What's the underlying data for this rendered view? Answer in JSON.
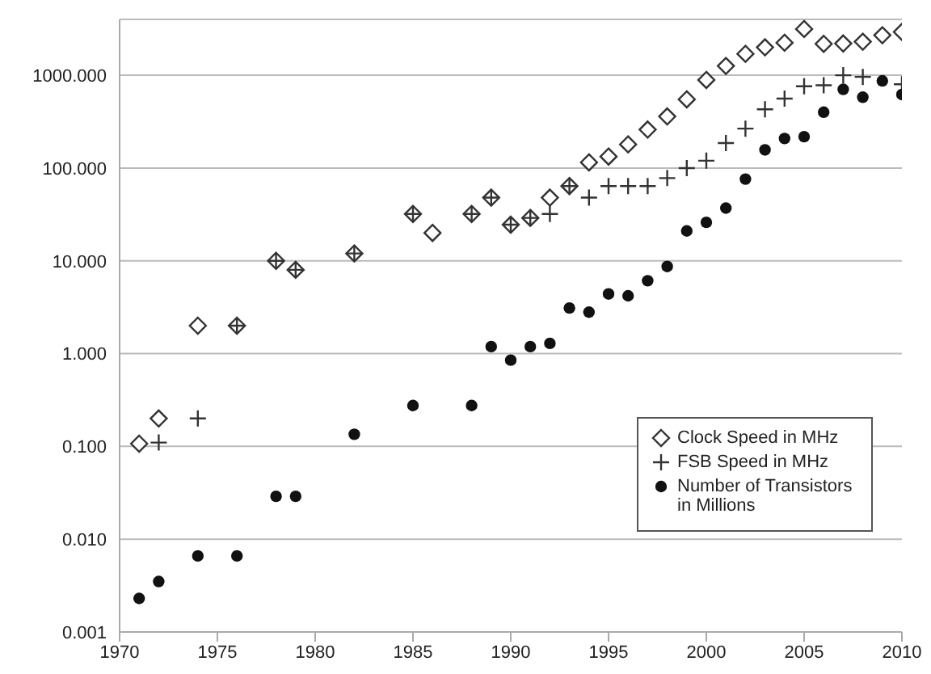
{
  "chart_data": {
    "type": "scatter",
    "x": [
      1971,
      1972,
      1974,
      1976,
      1978,
      1979,
      1982,
      1985,
      1986,
      1988,
      1989,
      1990,
      1991,
      1992,
      1993,
      1994,
      1995,
      1996,
      1997,
      1998,
      1999,
      2000,
      2001,
      2002,
      2003,
      2004,
      2005,
      2006,
      2007,
      2008,
      2009,
      2010
    ],
    "series": [
      {
        "name": "Clock Speed in MHz",
        "color": "#333333",
        "marker": "diamond",
        "values": [
          0.107,
          0.2,
          2,
          2,
          10,
          8,
          12,
          32,
          20,
          32,
          48,
          24.5,
          29,
          48,
          64,
          115,
          133,
          180,
          260,
          360,
          550,
          890,
          1260,
          1700,
          2000,
          2240,
          3150,
          2180,
          2200,
          2300,
          2700,
          2930
        ]
      },
      {
        "name": "FSB Speed in MHz",
        "color": "#333333",
        "marker": "cross",
        "values": [
          null,
          0.11,
          0.2,
          2,
          10,
          8,
          12,
          32,
          null,
          32,
          48,
          24.5,
          29,
          32,
          64,
          48,
          64,
          64,
          64,
          78,
          100,
          120,
          186,
          266,
          430,
          560,
          760,
          780,
          1000,
          960,
          null,
          800
        ]
      },
      {
        "name": "Number of Transistors in Millions",
        "color": "#111111",
        "marker": "circle",
        "values": [
          0.0023,
          0.0035,
          0.0066,
          0.0066,
          0.029,
          0.029,
          0.135,
          0.276,
          null,
          0.276,
          1.19,
          0.85,
          1.19,
          1.29,
          3.1,
          2.8,
          4.4,
          4.2,
          6.1,
          8.7,
          21,
          26,
          37,
          76,
          157,
          208,
          218,
          400,
          705,
          580,
          870,
          620
        ]
      }
    ],
    "log": "y",
    "xlim": [
      1970,
      2010
    ],
    "xticks": [
      1970,
      1975,
      1980,
      1985,
      1990,
      1995,
      2000,
      2005,
      2010
    ],
    "ylim": [
      0.001,
      4000
    ],
    "yticks": [
      {
        "value": 0.001,
        "label": "0.001"
      },
      {
        "value": 0.01,
        "label": "0.010"
      },
      {
        "value": 0.1,
        "label": "0.100"
      },
      {
        "value": 1,
        "label": "1.000"
      },
      {
        "value": 10,
        "label": "10.000"
      },
      {
        "value": 100,
        "label": "100.000"
      },
      {
        "value": 1000,
        "label": "1000.000"
      }
    ],
    "grid": "y",
    "legend": "right"
  }
}
